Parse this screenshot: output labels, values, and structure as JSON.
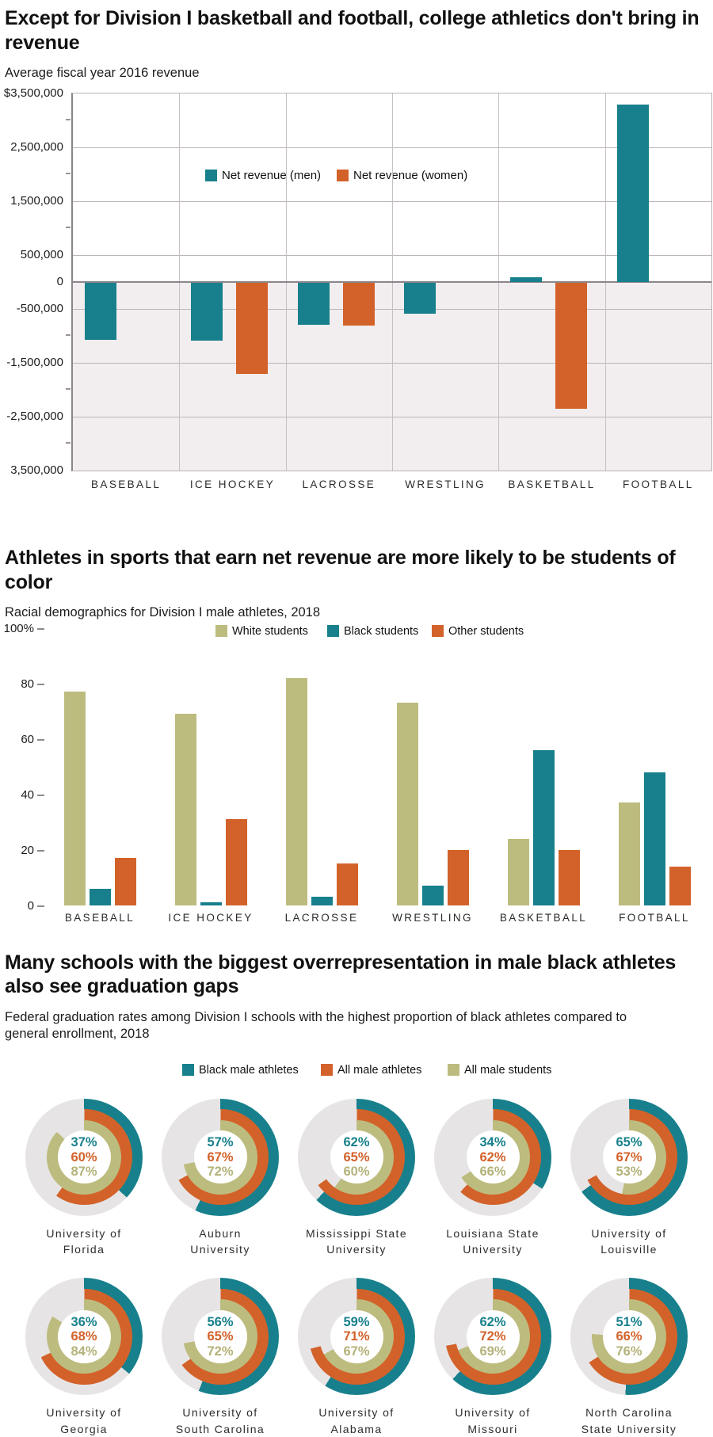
{
  "chart_data": [
    {
      "type": "bar",
      "title": "Except for Division I basketball and football, college athletics don't bring in revenue",
      "subtitle": "Average fiscal year 2016 revenue",
      "categories": [
        "BASEBALL",
        "ICE HOCKEY",
        "LACROSSE",
        "WRESTLING",
        "BASKETBALL",
        "FOOTBALL"
      ],
      "series": [
        {
          "name": "Net revenue (men)",
          "color": "#17808c",
          "values": [
            -1050000,
            -1060000,
            -780000,
            -570000,
            100000,
            3300000
          ]
        },
        {
          "name": "Net revenue (women)",
          "color": "#d2622a",
          "values": [
            null,
            -1680000,
            -790000,
            null,
            -2330000,
            null
          ]
        }
      ],
      "ylim": [
        -3500000,
        3500000
      ],
      "y_ticks": [
        {
          "value": 3500000,
          "label": "$3,500,000"
        },
        {
          "value": 2500000,
          "label": "2,500,000"
        },
        {
          "value": 1500000,
          "label": "1,500,000"
        },
        {
          "value": 500000,
          "label": "500,000"
        },
        {
          "value": 0,
          "label": "0"
        },
        {
          "value": -500000,
          "label": "-500,000"
        },
        {
          "value": -1500000,
          "label": "-1,500,000"
        },
        {
          "value": -2500000,
          "label": "-2,500,000"
        },
        {
          "value": -3500000,
          "label": "3,500,000"
        }
      ],
      "minor_tick_values": [
        3000000,
        2000000,
        1000000,
        -1000000,
        -2000000,
        -3000000
      ],
      "gridline_values": [
        2500000,
        1500000,
        500000,
        -500000,
        -1500000,
        -2500000
      ],
      "plot_style": {
        "below_zero_bg": "#f2edef",
        "gridline": "#bcb6bc",
        "zero_line": "#8a858a"
      },
      "legend_position": "inside-top-center"
    },
    {
      "type": "bar",
      "title": "Athletes in sports that earn net revenue are more likely to be students of color",
      "subtitle": "Racial demographics for Division I male athletes, 2018",
      "categories": [
        "BASEBALL",
        "ICE HOCKEY",
        "LACROSSE",
        "WRESTLING",
        "BASKETBALL",
        "FOOTBALL"
      ],
      "series": [
        {
          "name": "White students",
          "color": "#bdbc7f",
          "values": [
            77,
            69,
            82,
            73,
            24,
            37
          ]
        },
        {
          "name": "Black students",
          "color": "#17808c",
          "values": [
            6,
            1,
            3,
            7,
            56,
            48
          ]
        },
        {
          "name": "Other students",
          "color": "#d2622a",
          "values": [
            17,
            31,
            15,
            20,
            20,
            14
          ]
        }
      ],
      "ylim": [
        0,
        100
      ],
      "y_ticks": [
        {
          "value": 100,
          "label": "100%"
        },
        {
          "value": 80,
          "label": "80"
        },
        {
          "value": 60,
          "label": "60"
        },
        {
          "value": 40,
          "label": "40"
        },
        {
          "value": 20,
          "label": "20"
        },
        {
          "value": 0,
          "label": "0"
        }
      ],
      "grid": "none",
      "legend_position": "top"
    },
    {
      "type": "donut-grid",
      "title": "Many schools with the biggest overrepresentation in male black athletes also see graduation gaps",
      "subtitle": "Federal graduation rates among Division I schools with the highest proportion of black athletes compared to general enrollment, 2018",
      "legend": [
        {
          "label": "Black male athletes",
          "color": "#17808c",
          "text_color": "#17808c"
        },
        {
          "label": "All male athletes",
          "color": "#d2622a",
          "text_color": "#d2622a"
        },
        {
          "label": "All male students",
          "color": "#bdbc7f",
          "text_color": "#b3b279"
        }
      ],
      "track_color": "#e6e4e5",
      "schools": [
        {
          "name_lines": [
            "University of",
            "Florida"
          ],
          "values": [
            37,
            60,
            87
          ]
        },
        {
          "name_lines": [
            "Auburn",
            "University"
          ],
          "values": [
            57,
            67,
            72
          ]
        },
        {
          "name_lines": [
            "Mississippi State",
            "University"
          ],
          "values": [
            62,
            65,
            60
          ]
        },
        {
          "name_lines": [
            "Louisiana State",
            "University"
          ],
          "values": [
            34,
            62,
            66
          ]
        },
        {
          "name_lines": [
            "University of",
            "Louisville"
          ],
          "values": [
            65,
            67,
            53
          ]
        },
        {
          "name_lines": [
            "University of",
            "Georgia"
          ],
          "values": [
            36,
            68,
            84
          ]
        },
        {
          "name_lines": [
            "University of",
            "South Carolina"
          ],
          "values": [
            56,
            65,
            72
          ]
        },
        {
          "name_lines": [
            "University of",
            "Alabama"
          ],
          "values": [
            59,
            71,
            67
          ]
        },
        {
          "name_lines": [
            "University of",
            "Missouri"
          ],
          "values": [
            62,
            72,
            69
          ]
        },
        {
          "name_lines": [
            "North Carolina",
            "State University"
          ],
          "values": [
            51,
            66,
            76
          ]
        }
      ]
    }
  ]
}
